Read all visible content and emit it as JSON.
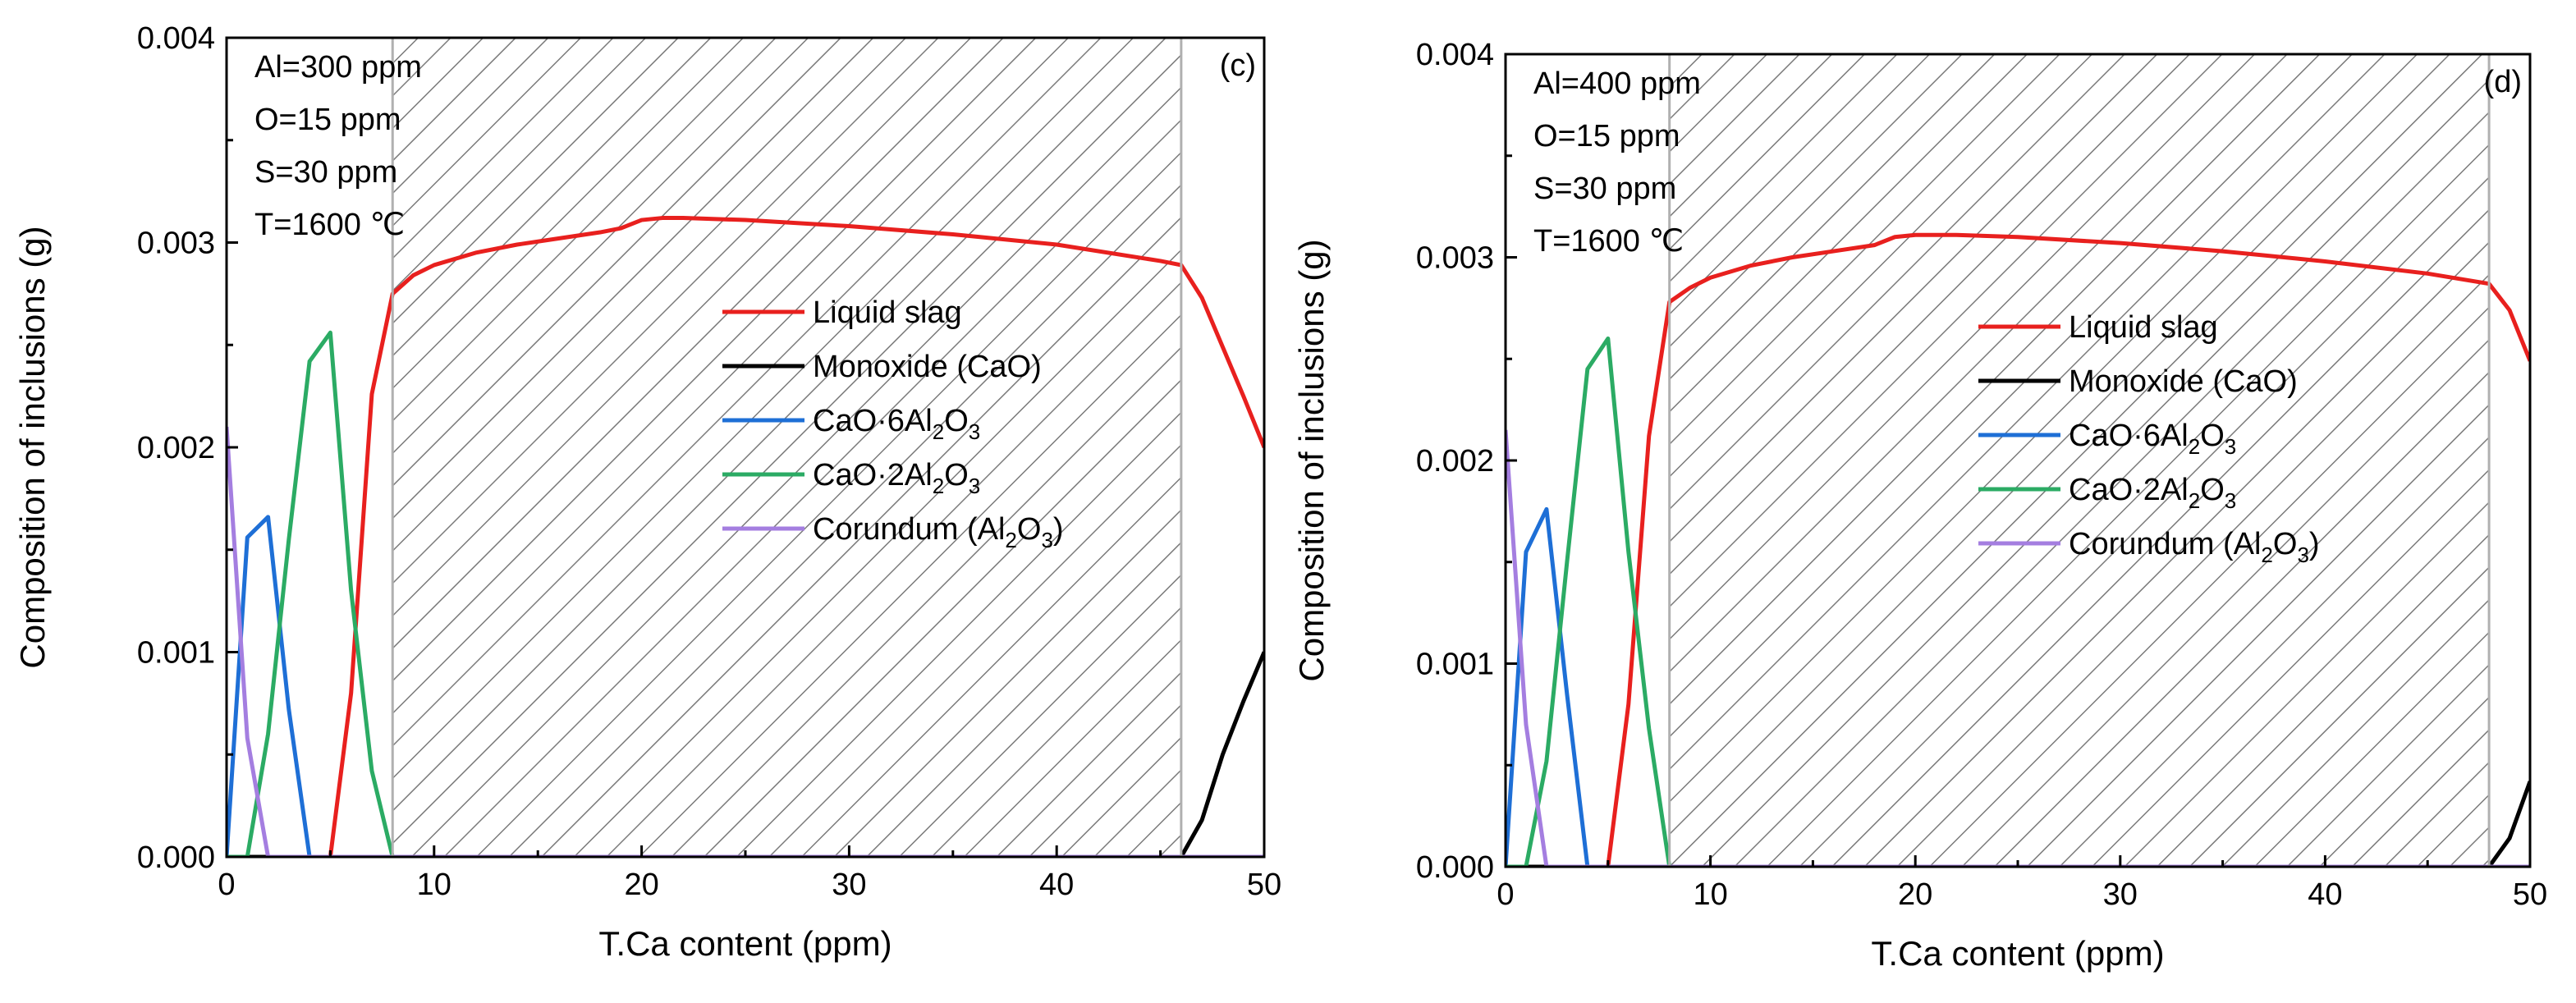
{
  "chart_data": [
    {
      "type": "line",
      "panel_label": "(c)",
      "xlabel": "T.Ca content (ppm)",
      "ylabel": "Composition of inclusions (g)",
      "xlim": [
        0,
        50
      ],
      "ylim": [
        0,
        0.004
      ],
      "xticks": [
        "0",
        "10",
        "20",
        "30",
        "40",
        "50"
      ],
      "yticks": [
        "0.000",
        "0.001",
        "0.002",
        "0.003",
        "0.004"
      ],
      "conditions": [
        "Al=300 ppm",
        "O=15 ppm",
        "S=30 ppm",
        "T=1600 ℃"
      ],
      "shaded_region": [
        8,
        46
      ],
      "legend_position": "right",
      "series": [
        {
          "name": "Liquid slag",
          "color": "#e8201e",
          "x": [
            5,
            6,
            7,
            8,
            9,
            10,
            12,
            14,
            16,
            18,
            19,
            20,
            21,
            22,
            25,
            30,
            35,
            40,
            45,
            46,
            47,
            48,
            49,
            50
          ],
          "values": [
            0,
            0.0008,
            0.00226,
            0.00275,
            0.00284,
            0.00289,
            0.00295,
            0.00299,
            0.00302,
            0.00305,
            0.00307,
            0.00311,
            0.00312,
            0.00312,
            0.00311,
            0.00308,
            0.00304,
            0.00299,
            0.00291,
            0.00289,
            0.00273,
            0.00249,
            0.00225,
            0.002
          ]
        },
        {
          "name": "Monoxide (CaO)",
          "color": "#000000",
          "x": [
            0,
            46,
            47,
            48,
            49,
            50
          ],
          "values": [
            0,
            0,
            0.00018,
            0.0005,
            0.00076,
            0.001
          ]
        },
        {
          "name": "CaO·6Al2O3",
          "label_main": "CaO·6Al",
          "label_s1": "2",
          "label_mid": "O",
          "label_s2": "3",
          "color": "#1e6fd6",
          "x": [
            0,
            1,
            2,
            3,
            4,
            50
          ],
          "values": [
            0,
            0.00156,
            0.00166,
            0.00072,
            0,
            0
          ]
        },
        {
          "name": "CaO·2Al2O3",
          "label_main": "CaO·2Al",
          "label_s1": "2",
          "label_mid": "O",
          "label_s2": "3",
          "color": "#2bab64",
          "x": [
            0,
            1,
            2,
            3,
            4,
            5,
            6,
            7,
            8,
            50
          ],
          "values": [
            0,
            0,
            0.0006,
            0.00155,
            0.00242,
            0.00256,
            0.0013,
            0.00042,
            0,
            0
          ]
        },
        {
          "name": "Corundum (Al2O3)",
          "label_main": "Corundum (Al",
          "label_s1": "2",
          "label_mid": "O",
          "label_s2": "3",
          "label_end": ")",
          "color": "#a47ee0",
          "x": [
            0,
            1,
            2,
            50
          ],
          "values": [
            0.0021,
            0.00058,
            0,
            0
          ]
        }
      ]
    },
    {
      "type": "line",
      "panel_label": "(d)",
      "xlabel": "T.Ca content (ppm)",
      "ylabel": "Composition of inclusions (g)",
      "xlim": [
        0,
        50
      ],
      "ylim": [
        0,
        0.004
      ],
      "xticks": [
        "0",
        "10",
        "20",
        "30",
        "40",
        "50"
      ],
      "yticks": [
        "0.000",
        "0.001",
        "0.002",
        "0.003",
        "0.004"
      ],
      "conditions": [
        "Al=400 ppm",
        "O=15 ppm",
        "S=30 ppm",
        "T=1600 ℃"
      ],
      "shaded_region": [
        8,
        48
      ],
      "legend_position": "right",
      "series": [
        {
          "name": "Liquid slag",
          "color": "#e8201e",
          "x": [
            5,
            6,
            7,
            8,
            9,
            10,
            12,
            14,
            16,
            18,
            19,
            20,
            21,
            22,
            25,
            30,
            35,
            40,
            45,
            48,
            49,
            50
          ],
          "values": [
            0,
            0.0008,
            0.00212,
            0.00278,
            0.00285,
            0.0029,
            0.00296,
            0.003,
            0.00303,
            0.00306,
            0.0031,
            0.00311,
            0.00311,
            0.00311,
            0.0031,
            0.00307,
            0.00303,
            0.00298,
            0.00292,
            0.00287,
            0.00274,
            0.00249
          ]
        },
        {
          "name": "Monoxide (CaO)",
          "color": "#000000",
          "x": [
            0,
            48,
            49,
            50
          ],
          "values": [
            0,
            0,
            0.00014,
            0.00042
          ]
        },
        {
          "name": "CaO·6Al2O3",
          "label_main": "CaO·6Al",
          "label_s1": "2",
          "label_mid": "O",
          "label_s2": "3",
          "color": "#1e6fd6",
          "x": [
            0,
            1,
            2,
            3,
            4,
            50
          ],
          "values": [
            0,
            0.00155,
            0.00176,
            0.00085,
            0,
            0
          ]
        },
        {
          "name": "CaO·2Al2O3",
          "label_main": "CaO·2Al",
          "label_s1": "2",
          "label_mid": "O",
          "label_s2": "3",
          "color": "#2bab64",
          "x": [
            0,
            1,
            2,
            3,
            4,
            5,
            6,
            7,
            8,
            50
          ],
          "values": [
            0,
            0,
            0.00052,
            0.0015,
            0.00245,
            0.0026,
            0.00155,
            0.00068,
            0,
            0
          ]
        },
        {
          "name": "Corundum (Al2O3)",
          "label_main": "Corundum (Al",
          "label_s1": "2",
          "label_mid": "O",
          "label_s2": "3",
          "label_end": ")",
          "color": "#a47ee0",
          "x": [
            0,
            1,
            2,
            50
          ],
          "values": [
            0.00215,
            0.0007,
            0,
            0
          ]
        }
      ]
    }
  ]
}
